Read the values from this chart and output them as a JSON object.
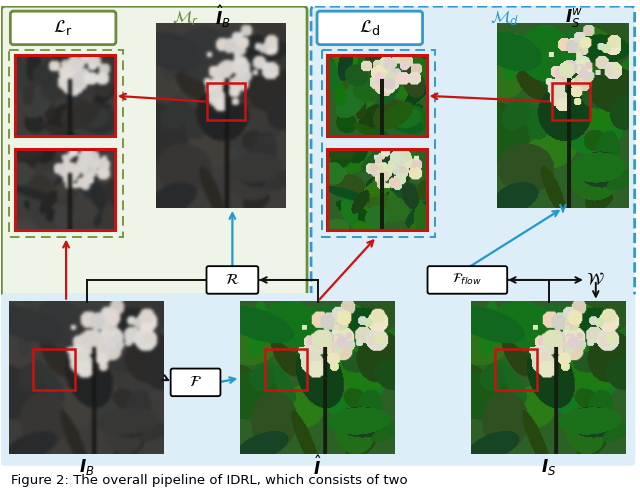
{
  "figsize": [
    6.4,
    4.95
  ],
  "dpi": 100,
  "green_panel_color": "#eef5e8",
  "green_edge_color": "#6b8c3a",
  "blue_panel_color": "#ddeef8",
  "blue_edge_color": "#3399cc",
  "bottom_panel_color": "#ddeef8",
  "red_box_color": "#cc1111",
  "arrow_red": "#cc1111",
  "arrow_blue": "#2299cc",
  "arrow_black": "#111111",
  "dashed_green": "#7a9a3e",
  "dashed_blue": "#3399cc",
  "caption": "Figure 2: The overall pipeline of IDRL, which consists of two"
}
